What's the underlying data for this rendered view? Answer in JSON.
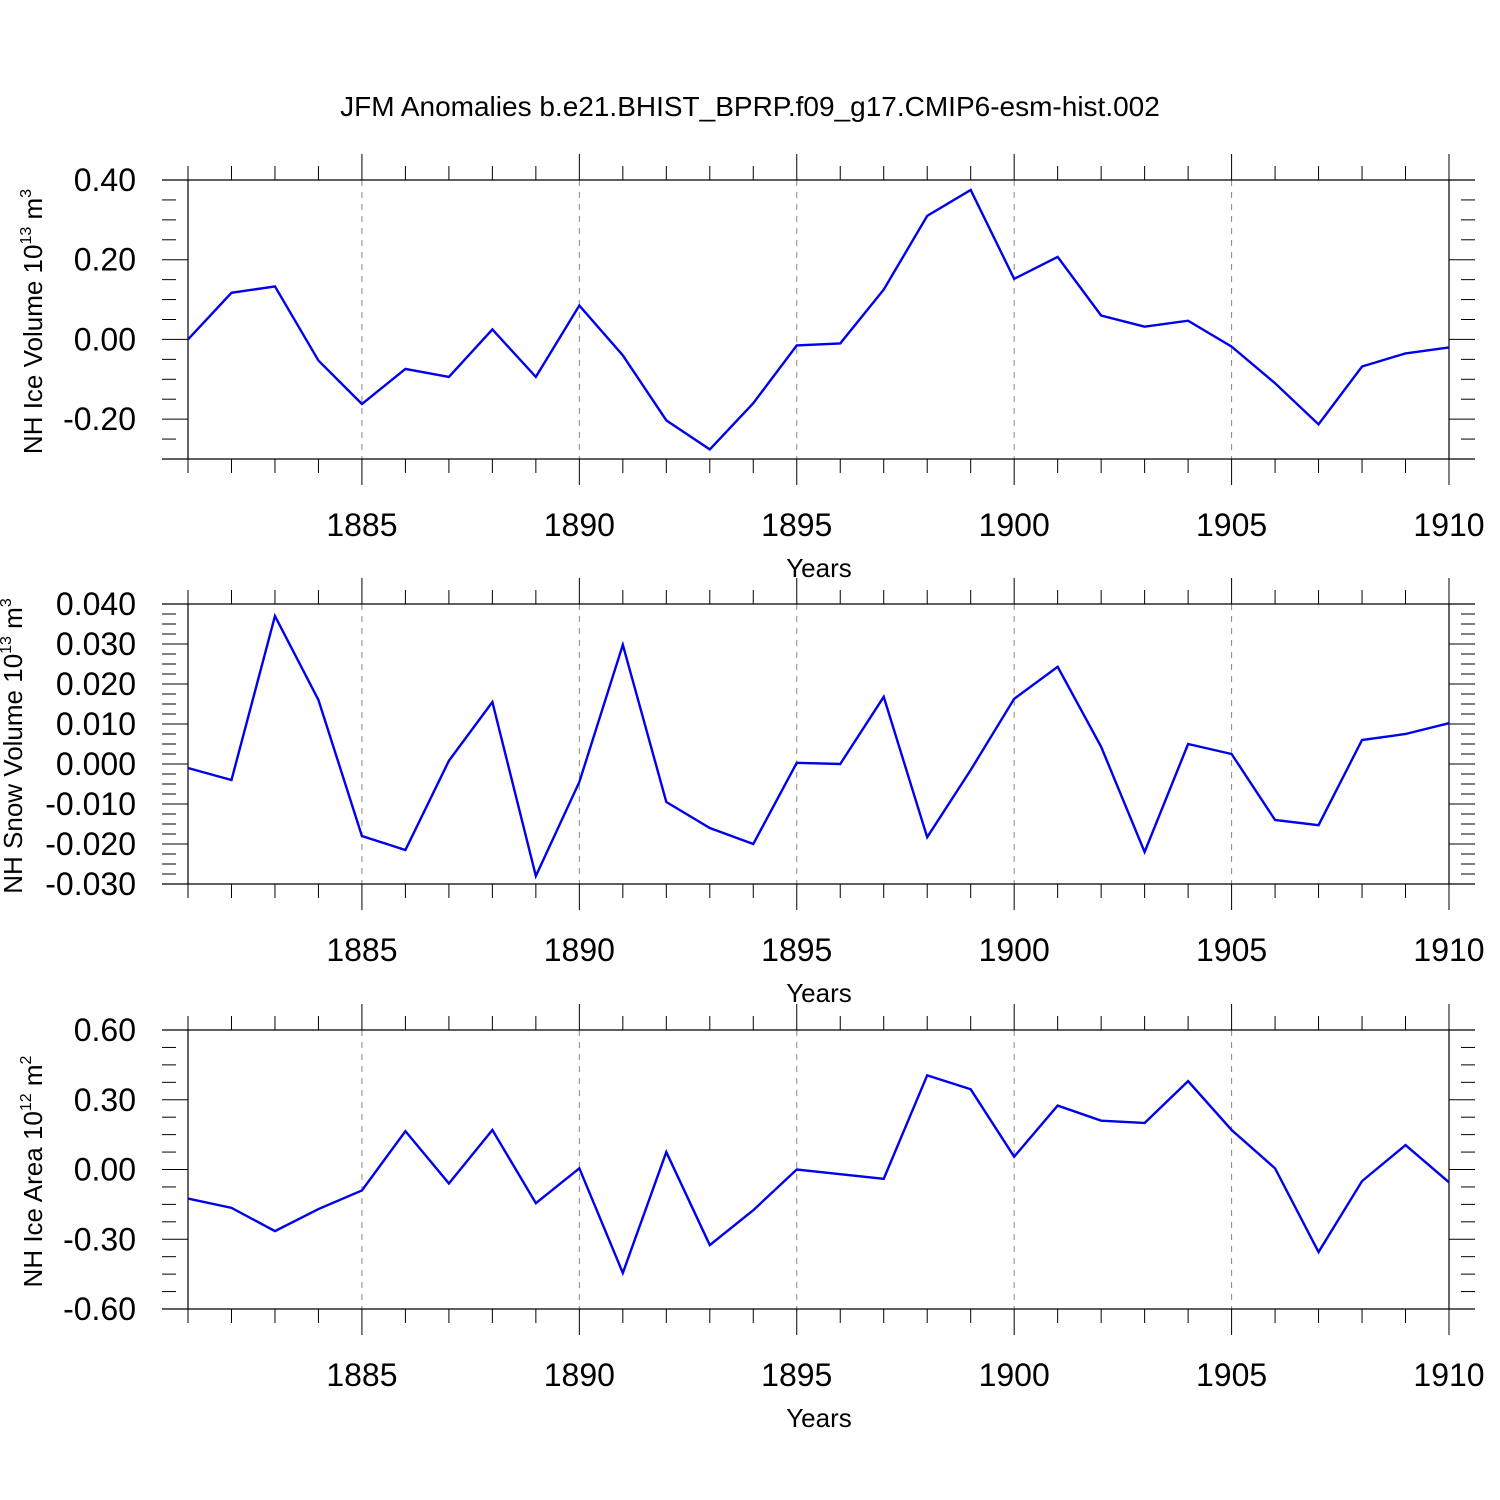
{
  "title": "JFM Anomalies b.e21.BHIST_BPRP.f09_g17.CMIP6-esm-hist.002",
  "chart_data": [
    {
      "type": "line",
      "title": "JFM Anomalies b.e21.BHIST_BPRP.f09_g17.CMIP6-esm-hist.002",
      "ylabel_main": "NH Ice Volume 10",
      "ylabel_exp": "13",
      "ylabel_unit": " m",
      "ylabel_unit_exp": "3",
      "xlabel": "Years",
      "xlim": [
        1881,
        1910
      ],
      "ylim": [
        -0.3,
        0.4
      ],
      "yticks": [
        0.4,
        0.2,
        0.0,
        -0.2
      ],
      "ytick_labels": [
        "0.40",
        "0.20",
        "0.00",
        "-0.20"
      ],
      "xticks": [
        1885,
        1890,
        1895,
        1900,
        1905,
        1910
      ],
      "xtick_labels": [
        "1885",
        "1890",
        "1895",
        "1900",
        "1905",
        "1910"
      ],
      "grid_x": "dashed vertical lines at labeled years",
      "line_color": "#0000ee",
      "x": [
        1881,
        1882,
        1883,
        1884,
        1885,
        1886,
        1887,
        1888,
        1889,
        1890,
        1891,
        1892,
        1893,
        1894,
        1895,
        1896,
        1897,
        1898,
        1899,
        1900,
        1901,
        1902,
        1903,
        1904,
        1905,
        1906,
        1907,
        1908,
        1909,
        1910
      ],
      "values": [
        0.0,
        0.117,
        0.133,
        -0.053,
        -0.162,
        -0.074,
        -0.094,
        0.025,
        -0.094,
        0.085,
        -0.04,
        -0.203,
        -0.276,
        -0.16,
        -0.015,
        -0.01,
        0.125,
        0.31,
        0.375,
        0.152,
        0.207,
        0.06,
        0.032,
        0.047,
        -0.018,
        -0.11,
        -0.213,
        -0.068,
        -0.035,
        -0.02
      ]
    },
    {
      "type": "line",
      "ylabel_main": "NH Snow Volume 10",
      "ylabel_exp": "13",
      "ylabel_unit": " m",
      "ylabel_unit_exp": "3",
      "xlabel": "Years",
      "xlim": [
        1881,
        1910
      ],
      "ylim": [
        -0.03,
        0.04
      ],
      "yticks": [
        0.04,
        0.03,
        0.02,
        0.01,
        0.0,
        -0.01,
        -0.02,
        -0.03
      ],
      "ytick_labels": [
        "0.040",
        "0.030",
        "0.020",
        "0.010",
        "0.000",
        "-0.010",
        "-0.020",
        "-0.030"
      ],
      "xticks": [
        1885,
        1890,
        1895,
        1900,
        1905,
        1910
      ],
      "xtick_labels": [
        "1885",
        "1890",
        "1895",
        "1900",
        "1905",
        "1910"
      ],
      "grid_x": "dashed vertical lines at labeled years",
      "line_color": "#0000ee",
      "x": [
        1881,
        1882,
        1883,
        1884,
        1885,
        1886,
        1887,
        1888,
        1889,
        1890,
        1891,
        1892,
        1893,
        1894,
        1895,
        1896,
        1897,
        1898,
        1899,
        1900,
        1901,
        1902,
        1903,
        1904,
        1905,
        1906,
        1907,
        1908,
        1909,
        1910
      ],
      "values": [
        -0.001,
        -0.004,
        0.037,
        0.016,
        -0.018,
        -0.0215,
        0.0008,
        0.0155,
        -0.028,
        -0.0045,
        0.0298,
        -0.0095,
        -0.016,
        -0.02,
        0.0003,
        0.0,
        0.0168,
        -0.0183,
        -0.0015,
        0.0163,
        0.0243,
        0.0043,
        -0.022,
        0.005,
        0.0025,
        -0.014,
        -0.0153,
        0.006,
        0.0075,
        0.0102
      ]
    },
    {
      "type": "line",
      "ylabel_main": "NH Ice Area 10",
      "ylabel_exp": "12",
      "ylabel_unit": " m",
      "ylabel_unit_exp": "2",
      "xlabel": "Years",
      "xlim": [
        1881,
        1910
      ],
      "ylim": [
        -0.6,
        0.6
      ],
      "yticks": [
        0.6,
        0.3,
        0.0,
        -0.3,
        -0.6
      ],
      "ytick_labels": [
        "0.60",
        "0.30",
        "0.00",
        "-0.30",
        "-0.60"
      ],
      "xticks": [
        1885,
        1890,
        1895,
        1900,
        1905,
        1910
      ],
      "xtick_labels": [
        "1885",
        "1890",
        "1895",
        "1900",
        "1905",
        "1910"
      ],
      "grid_x": "dashed vertical lines at labeled years",
      "line_color": "#0000ee",
      "x": [
        1881,
        1882,
        1883,
        1884,
        1885,
        1886,
        1887,
        1888,
        1889,
        1890,
        1891,
        1892,
        1893,
        1894,
        1895,
        1896,
        1897,
        1898,
        1899,
        1900,
        1901,
        1902,
        1903,
        1904,
        1905,
        1906,
        1907,
        1908,
        1909,
        1910
      ],
      "values": [
        -0.125,
        -0.165,
        -0.265,
        -0.17,
        -0.09,
        0.165,
        -0.06,
        0.17,
        -0.145,
        0.005,
        -0.445,
        0.075,
        -0.325,
        -0.175,
        0.0,
        -0.02,
        -0.04,
        0.405,
        0.345,
        0.055,
        0.275,
        0.21,
        0.2,
        0.38,
        0.17,
        0.005,
        -0.355,
        -0.05,
        0.105,
        -0.055
      ]
    }
  ]
}
